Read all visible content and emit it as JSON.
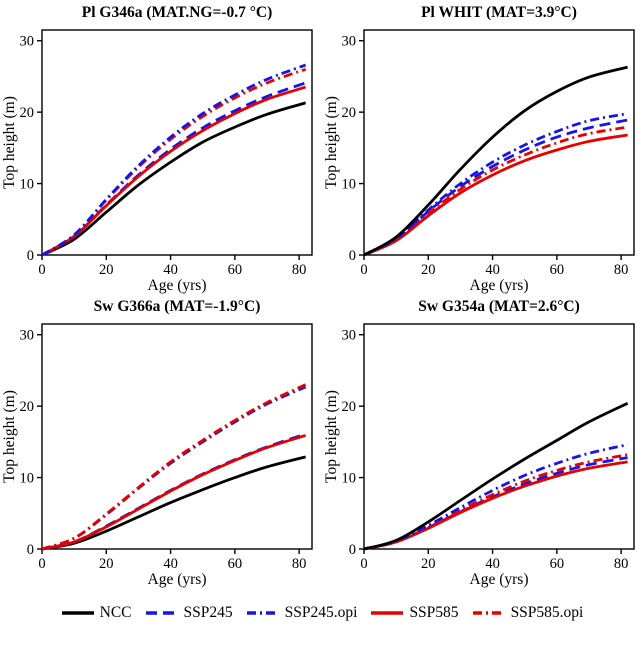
{
  "figure": {
    "legend": [
      {
        "label": "NCC",
        "color": "#000000",
        "dash": "solid"
      },
      {
        "label": "SSP245",
        "color": "#1515e6",
        "dash": "dashed"
      },
      {
        "label": "SSP245.opi",
        "color": "#1515e6",
        "dash": "dashdot"
      },
      {
        "label": "SSP585",
        "color": "#e60000",
        "dash": "solid"
      },
      {
        "label": "SSP585.opi",
        "color": "#e60000",
        "dash": "dashdot"
      }
    ]
  },
  "chart_data": [
    {
      "type": "line",
      "title": "Pl G346a (MAT.NG=-0.7 °C)",
      "xlabel": "Age (yrs)",
      "ylabel": "Top height (m)",
      "xlim": [
        0,
        84
      ],
      "ylim": [
        0,
        31.5
      ],
      "xticks": [
        0,
        20,
        40,
        60,
        80
      ],
      "yticks": [
        0,
        10,
        20,
        30
      ],
      "x": [
        0,
        10,
        20,
        30,
        40,
        50,
        60,
        70,
        82
      ],
      "series": [
        {
          "name": "NCC",
          "color": "#000000",
          "dash": "solid",
          "values": [
            0,
            2.2,
            6.0,
            9.8,
            13.0,
            15.8,
            17.9,
            19.7,
            21.3
          ]
        },
        {
          "name": "SSP245",
          "color": "#1515e6",
          "dash": "dashed",
          "values": [
            0,
            2.6,
            7.0,
            11.2,
            14.8,
            17.8,
            20.2,
            22.2,
            24.1
          ]
        },
        {
          "name": "SSP585",
          "color": "#e60000",
          "dash": "solid",
          "values": [
            0,
            2.6,
            6.9,
            11.0,
            14.5,
            17.4,
            19.8,
            21.8,
            23.5
          ]
        },
        {
          "name": "SSP585.opi",
          "color": "#e60000",
          "dash": "dashdot",
          "values": [
            0,
            2.8,
            7.7,
            12.3,
            16.2,
            19.4,
            22.0,
            24.1,
            26.0
          ]
        },
        {
          "name": "SSP245.opi",
          "color": "#1515e6",
          "dash": "dashdot",
          "values": [
            0,
            2.8,
            7.8,
            12.5,
            16.5,
            19.8,
            22.4,
            24.6,
            26.6
          ]
        }
      ]
    },
    {
      "type": "line",
      "title": "Pl WHIT (MAT=3.9°C)",
      "xlabel": "Age (yrs)",
      "ylabel": "Top height (m)",
      "xlim": [
        0,
        84
      ],
      "ylim": [
        0,
        31.5
      ],
      "xticks": [
        0,
        20,
        40,
        60,
        80
      ],
      "yticks": [
        0,
        10,
        20,
        30
      ],
      "x": [
        0,
        10,
        20,
        30,
        40,
        50,
        60,
        70,
        82
      ],
      "series": [
        {
          "name": "SSP245",
          "color": "#1515e6",
          "dash": "dashed",
          "values": [
            0,
            2.2,
            6.1,
            9.6,
            12.4,
            14.7,
            16.5,
            17.8,
            18.9
          ]
        },
        {
          "name": "SSP585",
          "color": "#e60000",
          "dash": "solid",
          "values": [
            0,
            2.0,
            5.5,
            8.7,
            11.2,
            13.2,
            14.7,
            15.9,
            16.8
          ]
        },
        {
          "name": "SSP585.opi",
          "color": "#e60000",
          "dash": "dashdot",
          "values": [
            0,
            2.1,
            5.8,
            9.2,
            11.9,
            14.0,
            15.7,
            17.0,
            17.9
          ]
        },
        {
          "name": "SSP245.opi",
          "color": "#1515e6",
          "dash": "dashdot",
          "values": [
            0,
            2.3,
            6.3,
            10.0,
            13.0,
            15.4,
            17.3,
            18.8,
            19.8
          ]
        },
        {
          "name": "NCC",
          "color": "#000000",
          "dash": "solid",
          "values": [
            0,
            2.5,
            7.0,
            12.0,
            16.5,
            20.2,
            22.9,
            24.9,
            26.3
          ]
        }
      ]
    },
    {
      "type": "line",
      "title": "Sw G366a (MAT=-1.9°C)",
      "xlabel": "Age (yrs)",
      "ylabel": "Top height (m)",
      "xlim": [
        0,
        84
      ],
      "ylim": [
        0,
        31.5
      ],
      "xticks": [
        0,
        20,
        40,
        60,
        80
      ],
      "yticks": [
        0,
        10,
        20,
        30
      ],
      "x": [
        0,
        10,
        20,
        30,
        40,
        50,
        60,
        70,
        82
      ],
      "series": [
        {
          "name": "NCC",
          "color": "#000000",
          "dash": "solid",
          "values": [
            0,
            0.8,
            2.5,
            4.5,
            6.5,
            8.3,
            10.0,
            11.5,
            12.9
          ]
        },
        {
          "name": "SSP245",
          "color": "#1515e6",
          "dash": "dashed",
          "values": [
            0,
            1.0,
            3.2,
            5.7,
            8.2,
            10.5,
            12.5,
            14.3,
            16.1
          ]
        },
        {
          "name": "SSP585",
          "color": "#e60000",
          "dash": "solid",
          "values": [
            0,
            1.0,
            3.1,
            5.6,
            8.1,
            10.4,
            12.4,
            14.2,
            15.9
          ]
        },
        {
          "name": "SSP245.opi",
          "color": "#1515e6",
          "dash": "dashdot",
          "values": [
            0,
            1.5,
            4.8,
            8.5,
            12.0,
            15.0,
            17.8,
            20.3,
            22.7
          ]
        },
        {
          "name": "SSP585.opi",
          "color": "#e60000",
          "dash": "dashdot",
          "values": [
            0,
            1.5,
            4.9,
            8.6,
            12.2,
            15.2,
            18.0,
            20.5,
            23.0
          ]
        }
      ]
    },
    {
      "type": "line",
      "title": "Sw G354a (MAT=2.6°C)",
      "xlabel": "Age (yrs)",
      "ylabel": "Top height (m)",
      "xlim": [
        0,
        84
      ],
      "ylim": [
        0,
        31.5
      ],
      "xticks": [
        0,
        20,
        40,
        60,
        80
      ],
      "yticks": [
        0,
        10,
        20,
        30
      ],
      "x": [
        0,
        10,
        20,
        30,
        40,
        50,
        60,
        70,
        82
      ],
      "series": [
        {
          "name": "SSP245",
          "color": "#1515e6",
          "dash": "dashed",
          "values": [
            0,
            1.0,
            3.0,
            5.2,
            7.3,
            9.1,
            10.6,
            11.8,
            12.8
          ]
        },
        {
          "name": "SSP585",
          "color": "#e60000",
          "dash": "solid",
          "values": [
            0,
            1.0,
            2.9,
            5.1,
            7.1,
            8.8,
            10.2,
            11.3,
            12.2
          ]
        },
        {
          "name": "SSP585.opi",
          "color": "#e60000",
          "dash": "dashdot",
          "values": [
            0,
            1.0,
            3.1,
            5.4,
            7.6,
            9.5,
            11.0,
            12.2,
            13.2
          ]
        },
        {
          "name": "SSP245.opi",
          "color": "#1515e6",
          "dash": "dashdot",
          "values": [
            0,
            1.1,
            3.3,
            5.8,
            8.2,
            10.3,
            12.0,
            13.4,
            14.6
          ]
        },
        {
          "name": "NCC",
          "color": "#000000",
          "dash": "solid",
          "values": [
            0,
            1.2,
            3.8,
            6.8,
            9.8,
            12.6,
            15.2,
            17.8,
            20.4
          ]
        }
      ]
    }
  ]
}
